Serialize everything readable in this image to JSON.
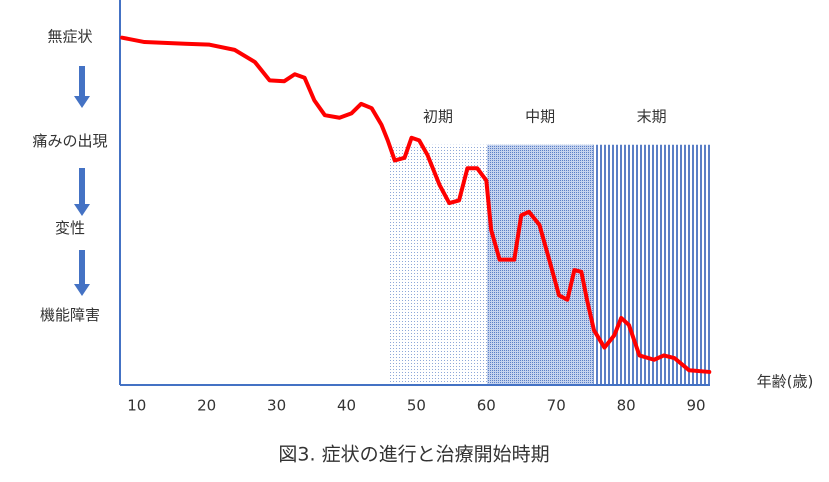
{
  "chart_data": {
    "type": "line",
    "caption": "図3. 症状の進行と治療開始時期",
    "x_label": "年齢(歳)",
    "xlim": [
      7.6,
      92
    ],
    "xticks": [
      10,
      20,
      30,
      40,
      50,
      60,
      70,
      80,
      90
    ],
    "ylim": [
      0,
      4.4
    ],
    "yticks": [
      {
        "value": 4,
        "label": "無症状"
      },
      {
        "value": 2.8,
        "label": "痛みの出現"
      },
      {
        "value": 1.8,
        "label": "変性"
      },
      {
        "value": 0.8,
        "label": "機能障害"
      }
    ],
    "regions": [
      {
        "label": "初期",
        "from": 46.1,
        "to": 60.1,
        "top": 2.76
      },
      {
        "label": "中期",
        "from": 60.1,
        "to": 75.3,
        "top": 2.76
      },
      {
        "label": "末期",
        "from": 75.3,
        "to": 92,
        "top": 2.76
      }
    ],
    "series": [
      {
        "name": "症状",
        "color": "#ff0000",
        "x": [
          7.9,
          11.1,
          16.9,
          20.4,
          24,
          26.9,
          29,
          31.1,
          32.6,
          34,
          35.4,
          36.9,
          39,
          40.7,
          42.1,
          43.6,
          45,
          45.9,
          46.9,
          48.3,
          49.3,
          50.4,
          51.6,
          53.3,
          54.7,
          56.1,
          57.3,
          58.7,
          60,
          60.7,
          61.9,
          64,
          65,
          66.1,
          67.6,
          69,
          70.4,
          71.6,
          72.6,
          73.6,
          74.4,
          75.4,
          76.9,
          78.3,
          79.3,
          80.4,
          81.9,
          84,
          85.4,
          86.9,
          89,
          91.9
        ],
        "values": [
          3.99,
          3.94,
          3.92,
          3.91,
          3.85,
          3.71,
          3.5,
          3.49,
          3.57,
          3.53,
          3.27,
          3.1,
          3.07,
          3.12,
          3.23,
          3.18,
          2.99,
          2.81,
          2.58,
          2.61,
          2.84,
          2.81,
          2.64,
          2.3,
          2.09,
          2.12,
          2.49,
          2.49,
          2.35,
          1.78,
          1.44,
          1.44,
          1.95,
          1.99,
          1.84,
          1.44,
          1.03,
          0.98,
          1.32,
          1.3,
          0.98,
          0.63,
          0.43,
          0.57,
          0.77,
          0.69,
          0.34,
          0.29,
          0.34,
          0.31,
          0.17,
          0.15
        ]
      }
    ]
  }
}
